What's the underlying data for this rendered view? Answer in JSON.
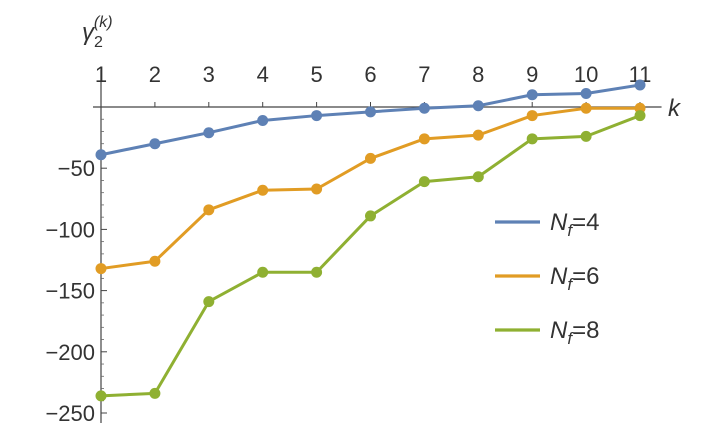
{
  "chart_data": {
    "type": "line",
    "title": "",
    "xlabel": "k",
    "ylabel": {
      "base": "γ",
      "sub": "2",
      "sup": "(k)"
    },
    "x": [
      1,
      2,
      3,
      4,
      5,
      6,
      7,
      8,
      9,
      10,
      11
    ],
    "x_tick_labels": [
      "1",
      "2",
      "3",
      "4",
      "5",
      "6",
      "7",
      "8",
      "9",
      "10",
      "11"
    ],
    "y_ticks": [
      -250,
      -200,
      -150,
      -100,
      -50
    ],
    "y_tick_labels": [
      "−250",
      "−200",
      "−150",
      "−100",
      "−50"
    ],
    "xlim": [
      1,
      11.4
    ],
    "ylim": [
      -250,
      0
    ],
    "grid": false,
    "legend_position": "right",
    "series": [
      {
        "name": "N_f=4",
        "label_base": "N",
        "label_sub": "f",
        "label_rest": "=4",
        "color": "#5E81B5",
        "values": [
          -39,
          -30,
          -21,
          -11,
          -7,
          -4,
          -1,
          1,
          10,
          11,
          18
        ]
      },
      {
        "name": "N_f=6",
        "label_base": "N",
        "label_sub": "f",
        "label_rest": "=6",
        "color": "#E19C24",
        "values": [
          -132,
          -126,
          -84,
          -68,
          -67,
          -42,
          -26,
          -23,
          -7,
          -1,
          -1
        ]
      },
      {
        "name": "N_f=8",
        "label_base": "N",
        "label_sub": "f",
        "label_rest": "=8",
        "color": "#8FB032",
        "values": [
          -236,
          -234,
          -159,
          -135,
          -135,
          -89,
          -61,
          -57,
          -26,
          -24,
          -7
        ]
      }
    ]
  }
}
